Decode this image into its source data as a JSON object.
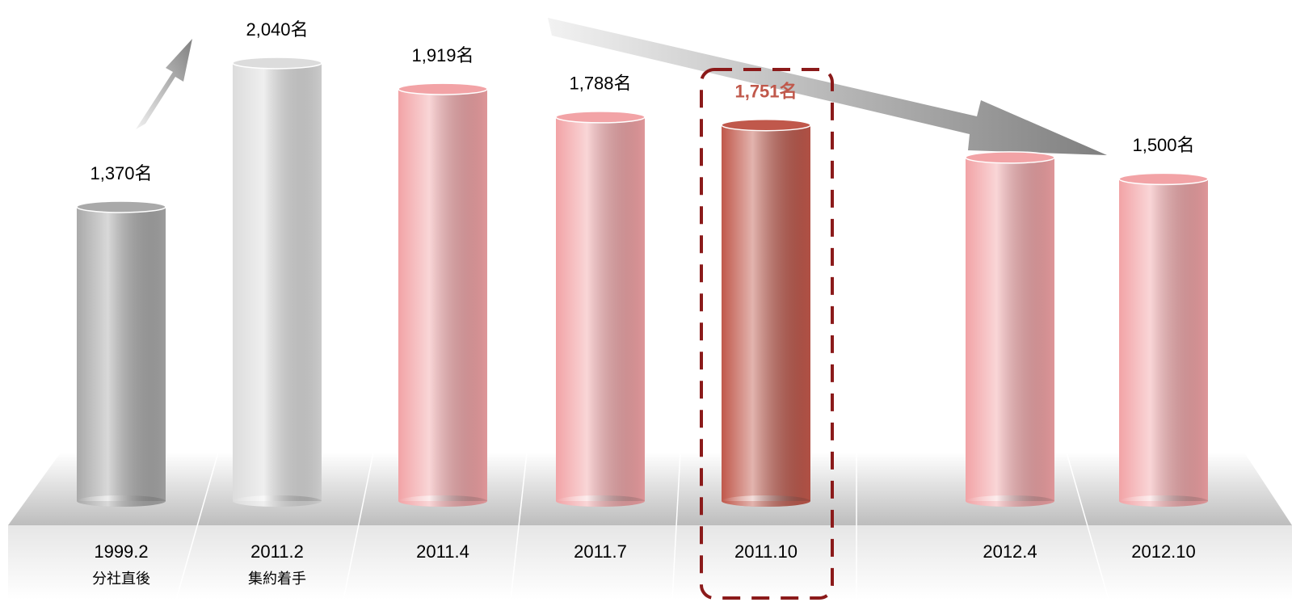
{
  "chart_data": {
    "type": "bar",
    "categories": [
      "1999.2",
      "2011.2",
      "2011.4",
      "2011.7",
      "2011.10",
      "2012.4",
      "2012.10"
    ],
    "category_notes": [
      "分社直後",
      "集約着手",
      null,
      null,
      null,
      null,
      null
    ],
    "values": [
      1370,
      2040,
      1919,
      1788,
      1751,
      1600,
      1500
    ],
    "value_labels": [
      "1,370名",
      "2,040名",
      "1,919名",
      "1,788名",
      "1,751名",
      null,
      "1,500名"
    ],
    "colors": [
      "#a9a9a9",
      "#dcdcdc",
      "#f2a3a6",
      "#f2a3a6",
      "#c0584b",
      "#f2a3a6",
      "#f2a3a6"
    ],
    "highlight": 4,
    "ylim": [
      0,
      2100
    ]
  }
}
